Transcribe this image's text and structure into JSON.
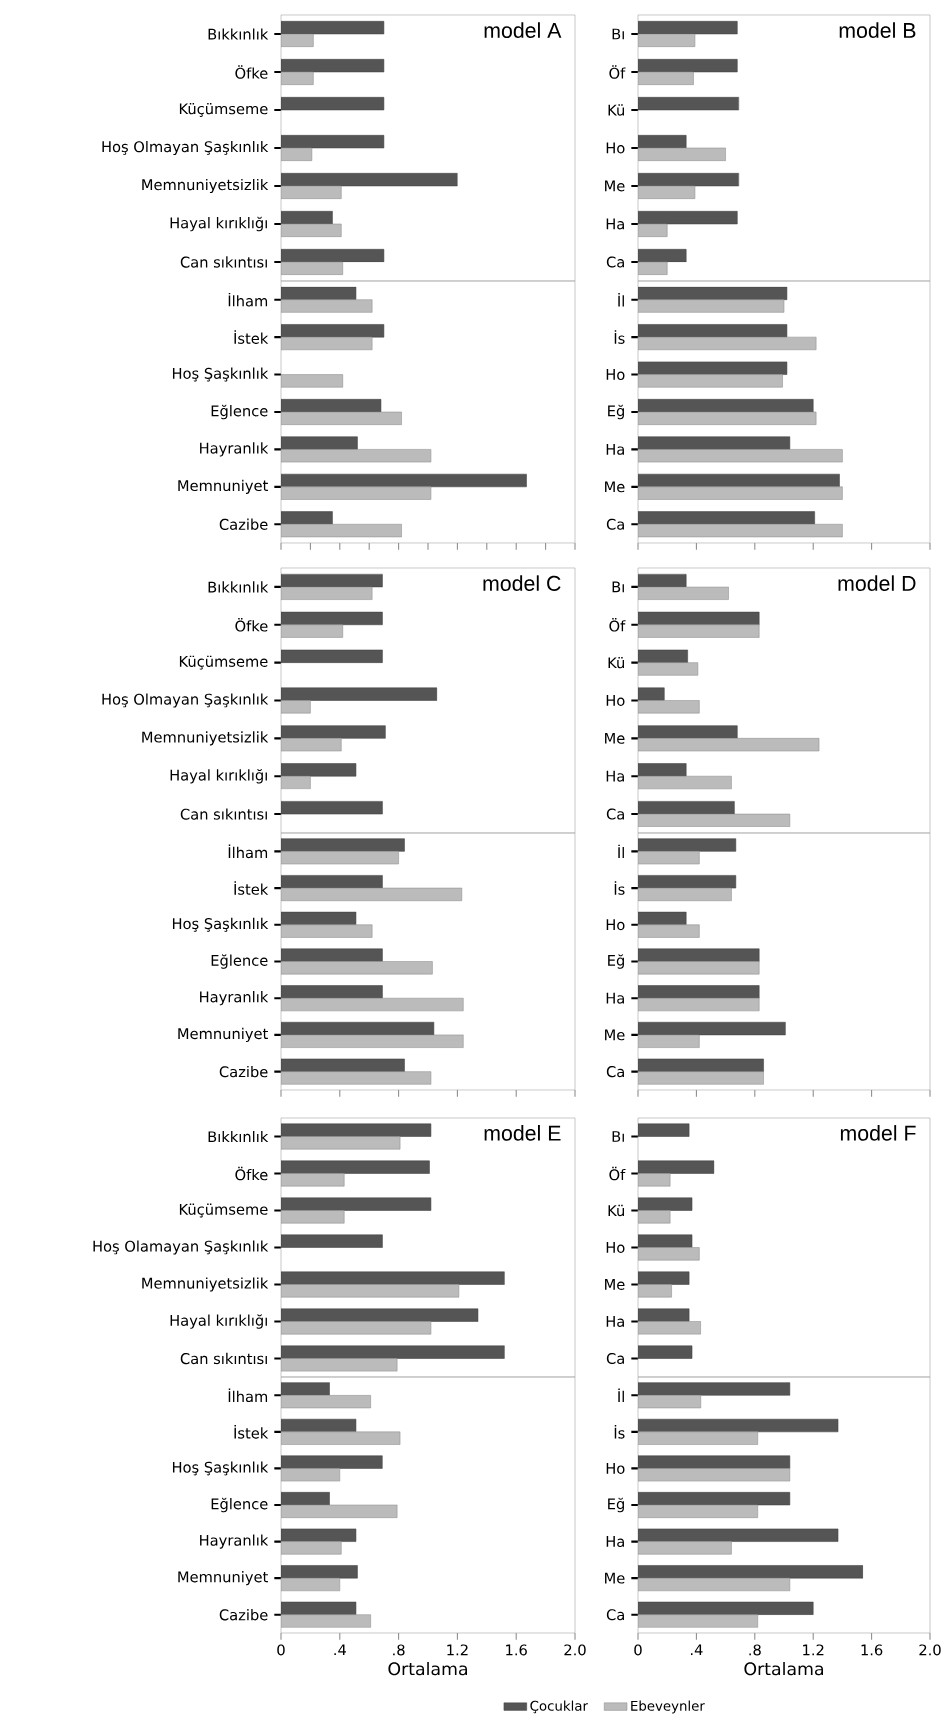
{
  "chart_data": [
    {
      "type": "bar",
      "orientation": "horizontal",
      "title": "model A",
      "categories": [
        "Bıkkınlık",
        "Öfke",
        "Küçümseme",
        "Hoş Olmayan Şaşkınlık",
        "Memnuniyetsizlik",
        "Hayal kırıklığı",
        "Can sıkıntısı"
      ],
      "series": [
        {
          "color": "#555555",
          "values": [
            0.7,
            0.7,
            0.7,
            0.7,
            1.2,
            0.35,
            0.7
          ]
        },
        {
          "color": "#bbbbbb",
          "values": [
            0.22,
            0.22,
            null,
            0.21,
            0.41,
            0.41,
            0.42
          ]
        }
      ],
      "xlim": [
        0,
        2
      ],
      "tick_labels": "y"
    },
    {
      "type": "bar",
      "orientation": "horizontal",
      "categories": [
        "İlham",
        "İstek",
        "Hoş Şaşkınlık",
        "Eğlence",
        "Hayranlık",
        "Memnuniyet",
        "Cazibe"
      ],
      "series": [
        {
          "color": "#555555",
          "values": [
            0.51,
            0.7,
            null,
            0.68,
            0.52,
            1.67,
            0.35
          ]
        },
        {
          "color": "#bbbbbb",
          "values": [
            0.62,
            0.62,
            0.42,
            0.82,
            1.02,
            1.02,
            0.82
          ]
        }
      ],
      "xlim": [
        0,
        2
      ],
      "xticks": [
        {
          "value": 0,
          "label": null
        },
        {
          "value": 0.2,
          "label": null
        },
        {
          "value": 0.4,
          "label": null
        },
        {
          "value": 0.6,
          "label": null
        },
        {
          "value": 0.8,
          "label": null
        },
        {
          "value": 1.0,
          "label": null
        },
        {
          "value": 1.2,
          "label": null
        },
        {
          "value": 1.4,
          "label": null
        },
        {
          "value": 1.6,
          "label": null
        },
        {
          "value": 1.8,
          "label": null
        },
        {
          "value": 2.0,
          "label": null
        }
      ],
      "tick_labels": "y"
    },
    {
      "type": "bar",
      "orientation": "horizontal",
      "title": "model B",
      "categories": [
        "Bı",
        "Öf",
        "Kü",
        "Ho",
        "Me",
        "Ha",
        "Ca"
      ],
      "series": [
        {
          "color": "#555555",
          "values": [
            0.68,
            0.68,
            0.69,
            0.33,
            0.69,
            0.68,
            0.33
          ]
        },
        {
          "color": "#bbbbbb",
          "values": [
            0.39,
            0.38,
            null,
            0.6,
            0.39,
            0.2,
            0.2
          ]
        }
      ],
      "xlim": [
        0,
        2
      ],
      "tick_labels": "y"
    },
    {
      "type": "bar",
      "orientation": "horizontal",
      "categories": [
        "İl",
        "İs",
        "Ho",
        "Eğ",
        "Ha",
        "Me",
        "Ca"
      ],
      "series": [
        {
          "color": "#555555",
          "values": [
            1.02,
            1.02,
            1.02,
            1.2,
            1.04,
            1.38,
            1.21
          ]
        },
        {
          "color": "#bbbbbb",
          "values": [
            1.0,
            1.22,
            0.99,
            1.22,
            1.4,
            1.4,
            1.4
          ]
        }
      ],
      "xlim": [
        0,
        2
      ],
      "xticks": [
        {
          "value": 0,
          "label": null
        },
        {
          "value": 0.4,
          "label": null
        },
        {
          "value": 0.8,
          "label": null
        },
        {
          "value": 1.2,
          "label": null
        },
        {
          "value": 1.6,
          "label": null
        },
        {
          "value": 2.0,
          "label": null
        }
      ],
      "tick_labels": "y"
    },
    {
      "type": "bar",
      "orientation": "horizontal",
      "title": "model C",
      "categories": [
        "Bıkkınlık",
        "Öfke",
        "Küçümseme",
        "Hoş Olmayan Şaşkınlık",
        "Memnuniyetsizlik",
        "Hayal kırıklığı",
        "Can sıkıntısı"
      ],
      "series": [
        {
          "color": "#555555",
          "values": [
            0.69,
            0.69,
            0.69,
            1.06,
            0.71,
            0.51,
            0.69
          ]
        },
        {
          "color": "#bbbbbb",
          "values": [
            0.62,
            0.42,
            null,
            0.2,
            0.41,
            0.2,
            null
          ]
        }
      ],
      "xlim": [
        0,
        2
      ],
      "tick_labels": "y"
    },
    {
      "type": "bar",
      "orientation": "horizontal",
      "categories": [
        "İlham",
        "İstek",
        "Hoş Şaşkınlık",
        "Eğlence",
        "Hayranlık",
        "Memnuniyet",
        "Cazibe"
      ],
      "series": [
        {
          "color": "#555555",
          "values": [
            0.84,
            0.69,
            0.51,
            0.69,
            0.69,
            1.04,
            0.84
          ]
        },
        {
          "color": "#bbbbbb",
          "values": [
            0.8,
            1.23,
            0.62,
            1.03,
            1.24,
            1.24,
            1.02
          ]
        }
      ],
      "xlim": [
        0,
        2
      ],
      "xticks": [
        {
          "value": 0,
          "label": null
        },
        {
          "value": 0.4,
          "label": null
        },
        {
          "value": 0.8,
          "label": null
        },
        {
          "value": 1.2,
          "label": null
        },
        {
          "value": 1.6,
          "label": null
        },
        {
          "value": 2.0,
          "label": null
        }
      ],
      "tick_labels": "y"
    },
    {
      "type": "bar",
      "orientation": "horizontal",
      "title": "model D",
      "categories": [
        "Bı",
        "Öf",
        "Kü",
        "Ho",
        "Me",
        "Ha",
        "Ca"
      ],
      "series": [
        {
          "color": "#555555",
          "values": [
            0.33,
            0.83,
            0.34,
            0.18,
            0.68,
            0.33,
            0.66
          ]
        },
        {
          "color": "#bbbbbb",
          "values": [
            0.62,
            0.83,
            0.41,
            0.42,
            1.24,
            0.64,
            1.04
          ]
        }
      ],
      "xlim": [
        0,
        2
      ],
      "tick_labels": "y"
    },
    {
      "type": "bar",
      "orientation": "horizontal",
      "categories": [
        "İl",
        "İs",
        "Ho",
        "Eğ",
        "Ha",
        "Me",
        "Ca"
      ],
      "series": [
        {
          "color": "#555555",
          "values": [
            0.67,
            0.67,
            0.33,
            0.83,
            0.83,
            1.01,
            0.86
          ]
        },
        {
          "color": "#bbbbbb",
          "values": [
            0.42,
            0.64,
            0.42,
            0.83,
            0.83,
            0.42,
            0.86
          ]
        }
      ],
      "xlim": [
        0,
        2
      ],
      "xticks": [
        {
          "value": 0,
          "label": null
        },
        {
          "value": 0.4,
          "label": null
        },
        {
          "value": 0.8,
          "label": null
        },
        {
          "value": 1.2,
          "label": null
        },
        {
          "value": 1.6,
          "label": null
        },
        {
          "value": 2.0,
          "label": null
        }
      ],
      "tick_labels": "y"
    },
    {
      "type": "bar",
      "orientation": "horizontal",
      "title": "model E",
      "categories": [
        "Bıkkınlık",
        "Öfke",
        "Küçümseme",
        "Hoş Olamayan Şaşkınlık",
        "Memnuniyetsizlik",
        "Hayal kırıklığı",
        "Can sıkıntısı"
      ],
      "series": [
        {
          "color": "#555555",
          "values": [
            1.02,
            1.01,
            1.02,
            0.69,
            1.52,
            1.34,
            1.52
          ]
        },
        {
          "color": "#bbbbbb",
          "values": [
            0.81,
            0.43,
            0.43,
            null,
            1.21,
            1.02,
            0.79
          ]
        }
      ],
      "xlim": [
        0,
        2
      ],
      "tick_labels": "y"
    },
    {
      "type": "bar",
      "orientation": "horizontal",
      "categories": [
        "İlham",
        "İstek",
        "Hoş Şaşkınlık",
        "Eğlence",
        "Hayranlık",
        "Memnuniyet",
        "Cazibe"
      ],
      "series": [
        {
          "color": "#555555",
          "values": [
            0.33,
            0.51,
            0.69,
            0.33,
            0.51,
            0.52,
            0.51
          ]
        },
        {
          "color": "#bbbbbb",
          "values": [
            0.61,
            0.81,
            0.4,
            0.79,
            0.41,
            0.4,
            0.61
          ]
        }
      ],
      "xlim": [
        0,
        2
      ],
      "xticks": [
        0,
        {
          "value": 0.4,
          "label": ".4"
        },
        {
          "value": 0.8,
          "label": ".8"
        },
        1.2,
        1.6,
        {
          "value": 2.0,
          "label": "2.0"
        }
      ],
      "xlabel": "Ortalama"
    },
    {
      "type": "bar",
      "orientation": "horizontal",
      "title": "model F",
      "categories": [
        "Bı",
        "Öf",
        "Kü",
        "Ho",
        "Me",
        "Ha",
        "Ca"
      ],
      "series": [
        {
          "color": "#555555",
          "values": [
            0.35,
            0.52,
            0.37,
            0.37,
            0.35,
            0.35,
            0.37
          ]
        },
        {
          "color": "#bbbbbb",
          "values": [
            null,
            0.22,
            0.22,
            0.42,
            0.23,
            0.43,
            null
          ]
        }
      ],
      "xlim": [
        0,
        2
      ],
      "tick_labels": "y"
    },
    {
      "type": "bar",
      "orientation": "horizontal",
      "categories": [
        "İl",
        "İs",
        "Ho",
        "Eğ",
        "Ha",
        "Me",
        "Ca"
      ],
      "series": [
        {
          "name": "Çocuklar",
          "color": "#555555",
          "values": [
            1.04,
            1.37,
            1.04,
            1.04,
            1.37,
            1.54,
            1.2
          ]
        },
        {
          "name": "Ebeveynler",
          "color": "#bbbbbb",
          "values": [
            0.43,
            0.82,
            1.04,
            0.82,
            0.64,
            1.04,
            0.82
          ]
        }
      ],
      "xlim": [
        0,
        2
      ],
      "xticks": [
        0,
        {
          "value": 0.4,
          "label": ".4"
        },
        {
          "value": 0.8,
          "label": ".8"
        },
        1.2,
        1.6,
        {
          "value": 2.0,
          "label": "2.0"
        }
      ],
      "xlabel": "Ortalama",
      "legend": "bottom"
    }
  ]
}
